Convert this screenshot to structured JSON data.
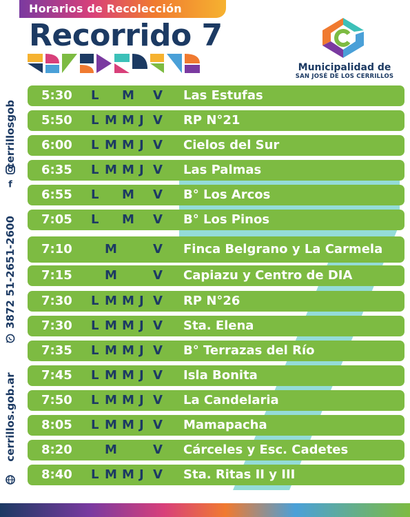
{
  "header": {
    "banner": "Horarios de Recolección",
    "title": "Recorrido 7"
  },
  "logo": {
    "name": "Municipalidad de",
    "subtitle": "SAN JOSÉ DE LOS CERRILLOS"
  },
  "contacts": {
    "social": "cerrillosgob",
    "phone": "3872 51-2651-2600",
    "website": "cerrillos.gob.ar"
  },
  "schedule": [
    {
      "time": "5:30",
      "days": [
        "L",
        "",
        "M",
        "",
        "V"
      ],
      "place": "Las Estufas"
    },
    {
      "time": "5:50",
      "days": [
        "L",
        "M",
        "M",
        "J",
        "V"
      ],
      "place": "RP N°21"
    },
    {
      "time": "6:00",
      "days": [
        "L",
        "M",
        "M",
        "J",
        "V"
      ],
      "place": "Cielos del Sur"
    },
    {
      "time": "6:35",
      "days": [
        "L",
        "M",
        "M",
        "J",
        "V"
      ],
      "place": "Las Palmas"
    },
    {
      "time": "6:55",
      "days": [
        "L",
        "",
        "M",
        "",
        "V"
      ],
      "place": "B° Los Arcos"
    },
    {
      "time": "7:05",
      "days": [
        "L",
        "",
        "M",
        "",
        "V"
      ],
      "place": "B° Los Pinos"
    },
    {
      "time": "7:10",
      "days": [
        "",
        "M",
        "",
        "",
        "V"
      ],
      "place": "Finca Belgrano y La Carmela"
    },
    {
      "time": "7:15",
      "days": [
        "",
        "M",
        "",
        "",
        "V"
      ],
      "place": "Capiazu y Centro de DIA"
    },
    {
      "time": "7:30",
      "days": [
        "L",
        "M",
        "M",
        "J",
        "V"
      ],
      "place": "RP N°26"
    },
    {
      "time": "7:30",
      "days": [
        "L",
        "M",
        "M",
        "J",
        "V"
      ],
      "place": "Sta. Elena"
    },
    {
      "time": "7:35",
      "days": [
        "L",
        "M",
        "M",
        "J",
        "V"
      ],
      "place": "B° Terrazas del Río"
    },
    {
      "time": "7:45",
      "days": [
        "L",
        "M",
        "M",
        "J",
        "V"
      ],
      "place": "Isla Bonita"
    },
    {
      "time": "7:50",
      "days": [
        "L",
        "M",
        "M",
        "J",
        "V"
      ],
      "place": "La Candelaria"
    },
    {
      "time": "8:05",
      "days": [
        "L",
        "M",
        "M",
        "J",
        "V"
      ],
      "place": "Mamapacha"
    },
    {
      "time": "8:20",
      "days": [
        "",
        "M",
        "",
        "",
        "V"
      ],
      "place": "Cárceles y Esc. Cadetes"
    },
    {
      "time": "8:40",
      "days": [
        "L",
        "M",
        "M",
        "J",
        "V"
      ],
      "place": "Sta. Ritas II y III"
    }
  ],
  "colors": {
    "navy": "#1c3a63",
    "green": "#7dbb42",
    "teal": "#3cc0b8"
  }
}
